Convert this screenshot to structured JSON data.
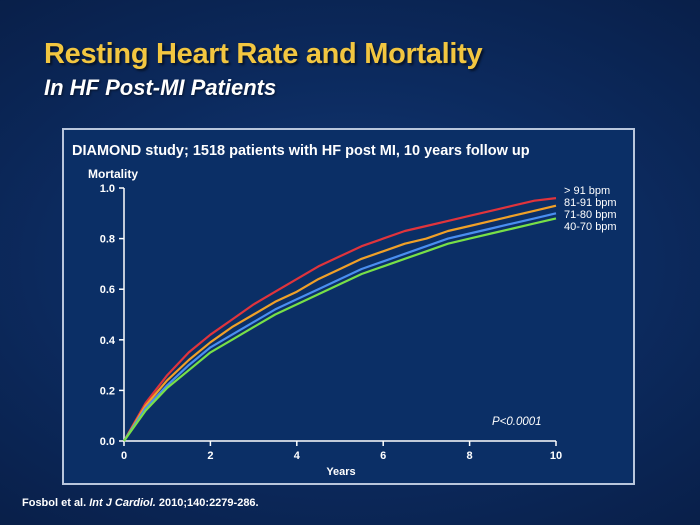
{
  "slide": {
    "title": "Resting Heart Rate and Mortality",
    "subtitle": "In HF Post-MI Patients",
    "citation_authors": "Fosbol et al. ",
    "citation_journal": "Int J Cardiol.",
    "citation_rest": " 2010;140:2279-286."
  },
  "colors": {
    "title": "#f2c640",
    "series": [
      "#e0343c",
      "#f0a028",
      "#4a8ef0",
      "#78e048"
    ]
  },
  "chart_data": {
    "type": "line",
    "title": "DIAMOND study; 1518 patients with HF post MI, 10 years follow up",
    "ylabel": "Mortality",
    "xlabel": "Years",
    "xlim": [
      0,
      10
    ],
    "ylim": [
      0,
      1
    ],
    "xticks": [
      0,
      2,
      4,
      6,
      8,
      10
    ],
    "xtick_labels": [
      "0",
      "2",
      "4",
      "6",
      "8",
      "10"
    ],
    "yticks": [
      0,
      0.2,
      0.4,
      0.6,
      0.8,
      1.0
    ],
    "ytick_labels": [
      "0.0",
      "0.2",
      "0.4",
      "0.6",
      "0.8",
      "1.0"
    ],
    "annotation": "P<0.0001",
    "x": [
      0,
      0.5,
      1,
      1.5,
      2,
      2.5,
      3,
      3.5,
      4,
      4.5,
      5,
      5.5,
      6,
      6.5,
      7,
      7.5,
      8,
      8.5,
      9,
      9.5,
      10
    ],
    "series": [
      {
        "name": "> 91 bpm",
        "values": [
          0,
          0.15,
          0.26,
          0.35,
          0.42,
          0.48,
          0.54,
          0.59,
          0.64,
          0.69,
          0.73,
          0.77,
          0.8,
          0.83,
          0.85,
          0.87,
          0.89,
          0.91,
          0.93,
          0.95,
          0.96
        ]
      },
      {
        "name": "81-91 bpm",
        "values": [
          0,
          0.14,
          0.24,
          0.32,
          0.39,
          0.45,
          0.5,
          0.55,
          0.59,
          0.64,
          0.68,
          0.72,
          0.75,
          0.78,
          0.8,
          0.83,
          0.85,
          0.87,
          0.89,
          0.91,
          0.93
        ]
      },
      {
        "name": "71-80 bpm",
        "values": [
          0,
          0.13,
          0.22,
          0.3,
          0.37,
          0.42,
          0.47,
          0.52,
          0.56,
          0.6,
          0.64,
          0.68,
          0.71,
          0.74,
          0.77,
          0.8,
          0.82,
          0.84,
          0.86,
          0.88,
          0.9
        ]
      },
      {
        "name": "40-70 bpm",
        "values": [
          0,
          0.12,
          0.21,
          0.28,
          0.35,
          0.4,
          0.45,
          0.5,
          0.54,
          0.58,
          0.62,
          0.66,
          0.69,
          0.72,
          0.75,
          0.78,
          0.8,
          0.82,
          0.84,
          0.86,
          0.88
        ]
      }
    ]
  }
}
